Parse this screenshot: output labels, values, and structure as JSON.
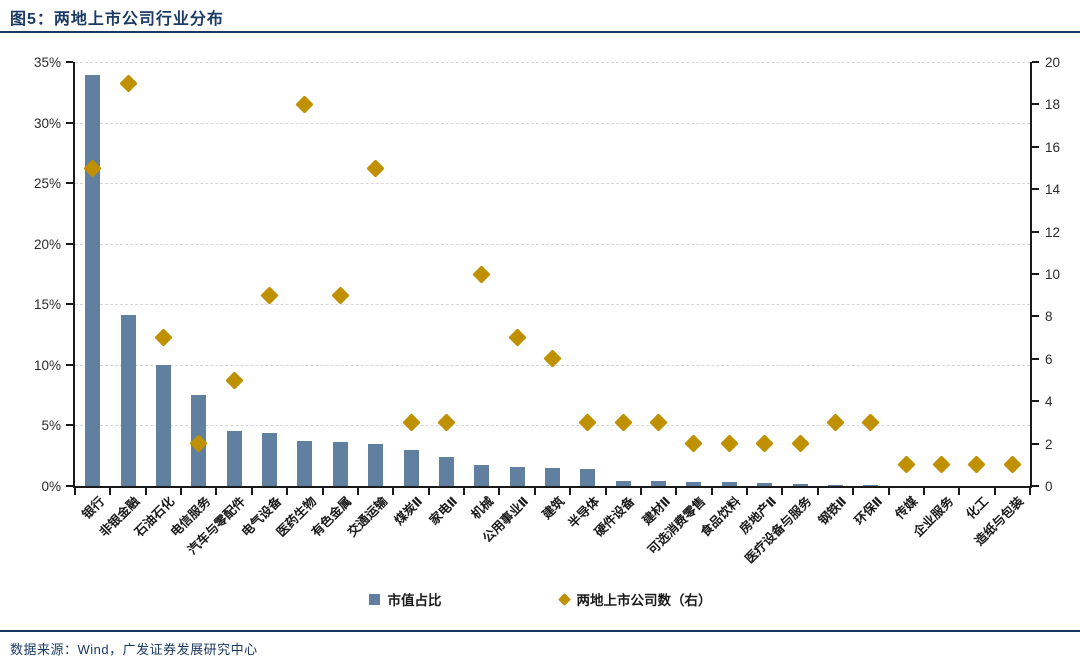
{
  "header": {
    "title": "图5：两地上市公司行业分布"
  },
  "legend": {
    "bar_label": "市值占比",
    "marker_label": "两地上市公司数（右）"
  },
  "footer": {
    "source": "数据来源：Wind，广发证券发展研究中心"
  },
  "colors": {
    "bar": "#61809f",
    "marker": "#bf9000",
    "title_navy": "#1b3a63",
    "rule_navy": "#17375e",
    "gridline": "#d6d6d6",
    "axis": "#1a1a1a"
  },
  "chart_data": {
    "type": "bar",
    "subtype": "bar + scatter combo, dual axis",
    "title": "两地上市公司行业分布",
    "grid": "horizontal dashed",
    "legend_position": "bottom center",
    "categories": [
      "银行",
      "非银金融",
      "石油石化",
      "电信服务",
      "汽车与零配件",
      "电气设备",
      "医药生物",
      "有色金属",
      "交通运输",
      "煤炭Ⅱ",
      "家电Ⅱ",
      "机械",
      "公用事业Ⅱ",
      "建筑",
      "半导体",
      "硬件设备",
      "建材Ⅱ",
      "可选消费零售",
      "食品饮料",
      "房地产Ⅱ",
      "医疗设备与服务",
      "钢铁Ⅱ",
      "环保Ⅱ",
      "传媒",
      "企业服务",
      "化工",
      "造纸与包装"
    ],
    "series": [
      {
        "name": "市值占比",
        "type": "bar",
        "axis": "left",
        "unit": "%",
        "values": [
          33.9,
          14.1,
          10.0,
          7.5,
          4.5,
          4.4,
          3.7,
          3.6,
          3.5,
          3.0,
          2.4,
          1.7,
          1.6,
          1.5,
          1.4,
          0.45,
          0.4,
          0.35,
          0.3,
          0.25,
          0.2,
          0.1,
          0.05,
          0,
          0,
          0,
          0
        ]
      },
      {
        "name": "两地上市公司数（右）",
        "type": "scatter",
        "marker": "diamond",
        "axis": "right",
        "values": [
          15,
          19,
          7,
          2,
          5,
          9,
          18,
          9,
          15,
          3,
          3,
          10,
          7,
          6,
          3,
          3,
          3,
          2,
          2,
          2,
          2,
          3,
          3,
          1,
          1,
          1,
          1
        ]
      }
    ],
    "left_axis": {
      "min": 0,
      "max": 35,
      "step": 5,
      "tick_labels": [
        "0%",
        "5%",
        "10%",
        "15%",
        "20%",
        "25%",
        "30%",
        "35%"
      ]
    },
    "right_axis": {
      "min": 0,
      "max": 20,
      "step": 2,
      "tick_labels": [
        "0",
        "2",
        "4",
        "6",
        "8",
        "10",
        "12",
        "14",
        "16",
        "18",
        "20"
      ]
    }
  }
}
